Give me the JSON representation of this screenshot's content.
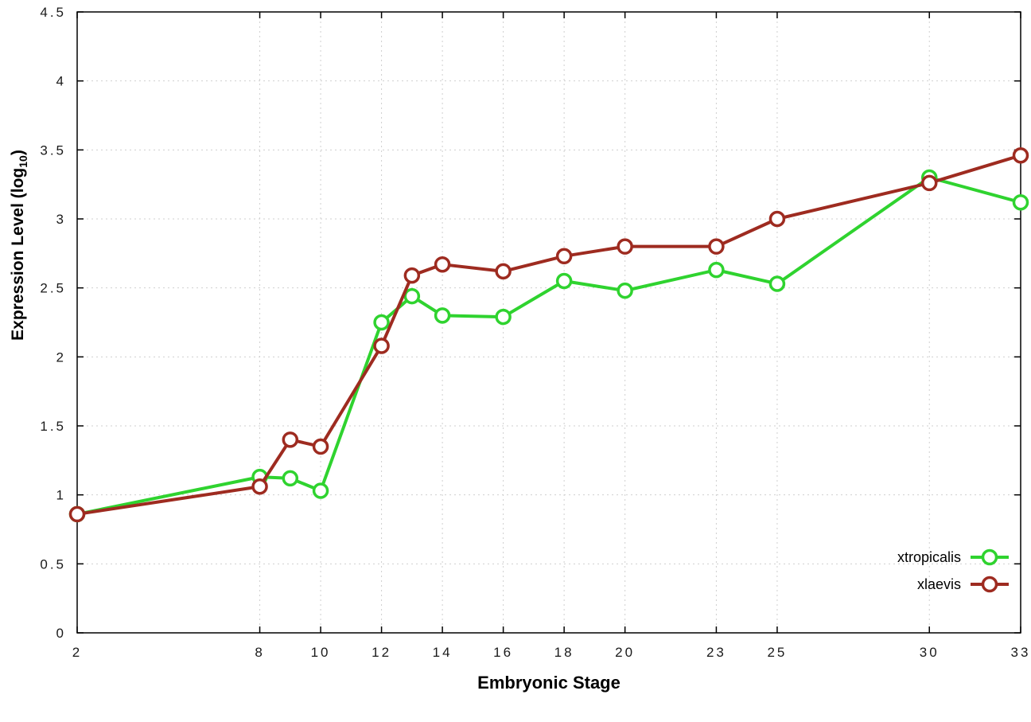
{
  "chart_data": {
    "type": "line",
    "title": "",
    "xlabel": "Embryonic Stage",
    "ylabel": "Expression Level (log10)",
    "ylabel_parts": {
      "prefix": "Expression Level (log",
      "sub": "10",
      "suffix": ")"
    },
    "xlim": [
      2,
      33
    ],
    "ylim": [
      0,
      4.5
    ],
    "x_ticks": [
      2,
      8,
      10,
      12,
      14,
      16,
      18,
      20,
      23,
      25,
      30,
      33
    ],
    "y_ticks": [
      0,
      0.5,
      1,
      1.5,
      2,
      2.5,
      3,
      3.5,
      4,
      4.5
    ],
    "grid": true,
    "legend_position": "inside-bottom-right",
    "background_color": "#ffffff",
    "grid_color": "#cfcfcf",
    "axis_color": "#000000",
    "series": [
      {
        "name": "xtropicalis",
        "color": "#2fd32f",
        "x": [
          2,
          8,
          9,
          10,
          12,
          13,
          14,
          16,
          18,
          20,
          23,
          25,
          30,
          33
        ],
        "y": [
          0.86,
          1.13,
          1.12,
          1.03,
          2.25,
          2.44,
          2.3,
          2.29,
          2.55,
          2.48,
          2.63,
          2.53,
          3.3,
          3.12
        ]
      },
      {
        "name": "xlaevis",
        "color": "#9e2b20",
        "x": [
          2,
          8,
          9,
          10,
          12,
          13,
          14,
          16,
          18,
          20,
          23,
          25,
          30,
          33
        ],
        "y": [
          0.86,
          1.06,
          1.4,
          1.35,
          2.08,
          2.59,
          2.67,
          2.62,
          2.73,
          2.8,
          2.8,
          3.0,
          3.26,
          3.46
        ]
      }
    ]
  }
}
